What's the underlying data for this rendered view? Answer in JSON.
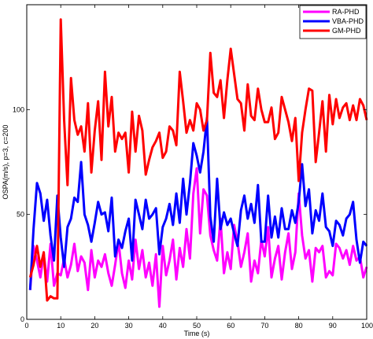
{
  "chart_data": {
    "type": "line",
    "title": "",
    "xlabel": "Time (s)",
    "ylabel": "OSPA(m/s), p=3, c=200",
    "xlim": [
      0,
      100
    ],
    "ylim": [
      0,
      150
    ],
    "xticks": [
      0,
      10,
      20,
      30,
      40,
      50,
      60,
      70,
      80,
      90,
      100
    ],
    "yticks": [
      0,
      50,
      100
    ],
    "xtick_labels": [
      "0",
      "10",
      "20",
      "30",
      "40",
      "50",
      "60",
      "70",
      "80",
      "90",
      "100"
    ],
    "ytick_labels": [
      "0",
      "50",
      "100"
    ],
    "grid": false,
    "legend_position": "top-right",
    "x": [
      1,
      2,
      3,
      4,
      5,
      6,
      7,
      8,
      9,
      10,
      11,
      12,
      13,
      14,
      15,
      16,
      17,
      18,
      19,
      20,
      21,
      22,
      23,
      24,
      25,
      26,
      27,
      28,
      29,
      30,
      31,
      32,
      33,
      34,
      35,
      36,
      37,
      38,
      39,
      40,
      41,
      42,
      43,
      44,
      45,
      46,
      47,
      48,
      49,
      50,
      51,
      52,
      53,
      54,
      55,
      56,
      57,
      58,
      59,
      60,
      61,
      62,
      63,
      64,
      65,
      66,
      67,
      68,
      69,
      70,
      71,
      72,
      73,
      74,
      75,
      76,
      77,
      78,
      79,
      80,
      81,
      82,
      83,
      84,
      85,
      86,
      87,
      88,
      89,
      90,
      91,
      92,
      93,
      94,
      95,
      96,
      97,
      98,
      99,
      100
    ],
    "series": [
      {
        "name": "RA-PHD",
        "color": "#ff00ff",
        "values": [
          14,
          35,
          28,
          20,
          31,
          18,
          36,
          16,
          22,
          21,
          29,
          20,
          26,
          36,
          23,
          30,
          27,
          14,
          33,
          20,
          28,
          25,
          31,
          22,
          16,
          26,
          37,
          22,
          15,
          28,
          19,
          38,
          24,
          33,
          20,
          27,
          16,
          31,
          6,
          35,
          21,
          28,
          38,
          19,
          34,
          25,
          43,
          29,
          60,
          72,
          41,
          62,
          59,
          40,
          33,
          28,
          48,
          22,
          32,
          24,
          45,
          37,
          25,
          32,
          41,
          18,
          28,
          22,
          38,
          30,
          44,
          20,
          29,
          35,
          19,
          32,
          41,
          24,
          32,
          60,
          40,
          29,
          33,
          18,
          34,
          32,
          35,
          20,
          23,
          21,
          36,
          34,
          29,
          33,
          26,
          35,
          28,
          30,
          20,
          25
        ]
      },
      {
        "name": "VBA-PHD",
        "color": "#0000ff",
        "values": [
          14,
          43,
          65,
          60,
          47,
          57,
          40,
          28,
          59,
          39,
          25,
          44,
          48,
          58,
          56,
          75,
          50,
          45,
          37,
          46,
          56,
          50,
          51,
          42,
          58,
          30,
          38,
          34,
          42,
          48,
          28,
          57,
          50,
          43,
          57,
          48,
          50,
          53,
          31,
          44,
          48,
          55,
          45,
          60,
          46,
          67,
          50,
          65,
          84,
          78,
          70,
          80,
          96,
          49,
          37,
          67,
          43,
          51,
          45,
          48,
          41,
          35,
          52,
          59,
          48,
          55,
          46,
          64,
          37,
          37,
          59,
          39,
          49,
          39,
          53,
          43,
          43,
          52,
          46,
          56,
          74,
          54,
          62,
          41,
          52,
          47,
          60,
          44,
          42,
          35,
          47,
          45,
          40,
          48,
          50,
          56,
          38,
          27,
          37,
          35
        ]
      },
      {
        "name": "GM-PHD",
        "color": "#ff0000",
        "values": [
          20,
          26,
          35,
          25,
          32,
          9,
          11,
          10,
          10,
          143,
          95,
          64,
          115,
          95,
          88,
          92,
          80,
          103,
          70,
          90,
          104,
          76,
          118,
          92,
          106,
          80,
          89,
          86,
          89,
          70,
          99,
          80,
          97,
          90,
          69,
          76,
          82,
          85,
          89,
          77,
          80,
          92,
          90,
          83,
          118,
          104,
          89,
          95,
          90,
          103,
          100,
          90,
          95,
          127,
          108,
          106,
          114,
          96,
          114,
          129,
          117,
          105,
          103,
          90,
          112,
          97,
          95,
          110,
          100,
          94,
          94,
          101,
          86,
          89,
          106,
          100,
          94,
          85,
          96,
          66,
          89,
          100,
          110,
          109,
          75,
          89,
          104,
          80,
          107,
          93,
          105,
          96,
          101,
          103,
          95,
          102,
          95,
          105,
          102,
          95
        ]
      }
    ]
  }
}
